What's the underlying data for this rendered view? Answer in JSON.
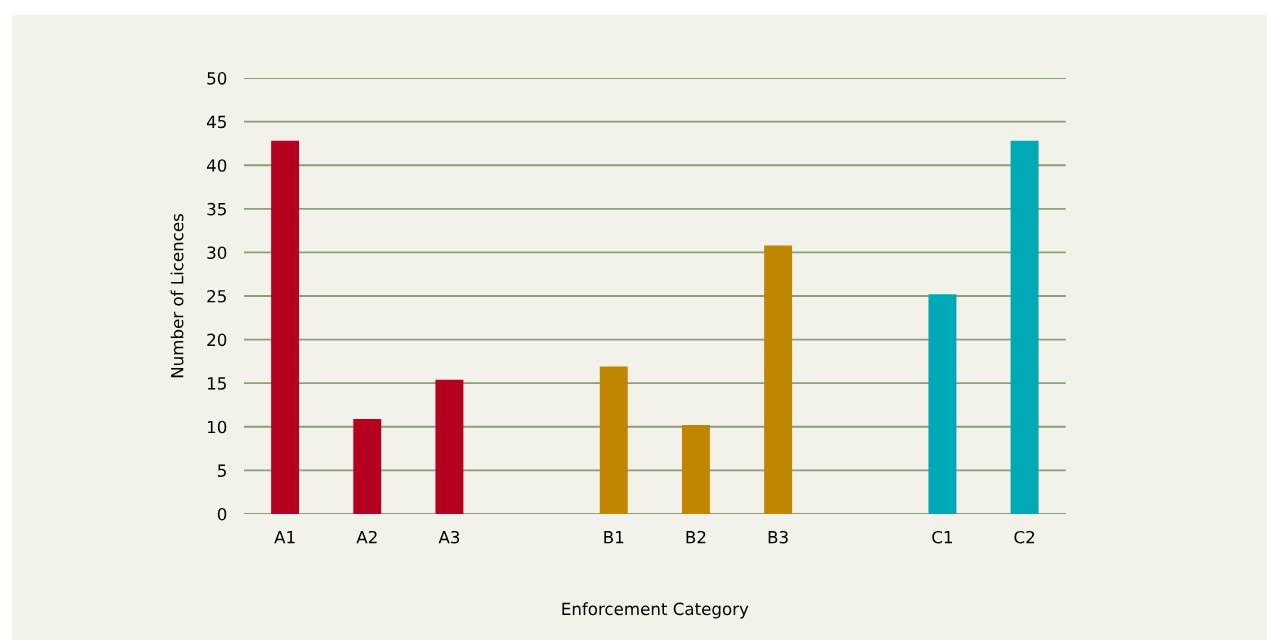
{
  "chart_data": {
    "type": "bar",
    "xlabel": "Enforcement Category",
    "ylabel": "Number of Licences",
    "categories": [
      "A1",
      "A2",
      "A3",
      null,
      "B1",
      "B2",
      "B3",
      null,
      "C1",
      "C2"
    ],
    "values": [
      42.8,
      10.9,
      15.4,
      null,
      16.9,
      10.2,
      30.8,
      null,
      25.2,
      42.8
    ],
    "colors": [
      "#b5001f",
      "#b5001f",
      "#b5001f",
      null,
      "#c08600",
      "#c08600",
      "#c08600",
      null,
      "#00a9b5",
      "#00a9b5"
    ],
    "ylim": [
      0,
      50
    ],
    "yticks": [
      0,
      5,
      10,
      15,
      20,
      25,
      30,
      35,
      40,
      45,
      50
    ],
    "grid": "y"
  }
}
